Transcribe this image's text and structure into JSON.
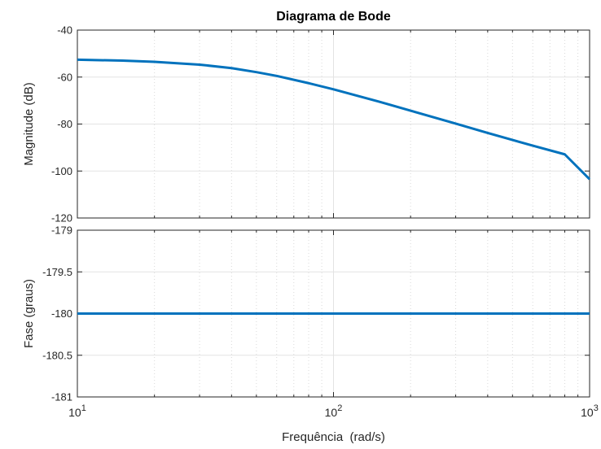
{
  "chart_data": [
    {
      "type": "line",
      "title": "Diagrama de Bode",
      "ylabel": "Magnitude (dB)",
      "xlabel": "",
      "xscale": "log",
      "xlim": [
        10,
        1000
      ],
      "ylim": [
        -120,
        -40
      ],
      "yticks": [
        -120,
        -100,
        -80,
        -60,
        -40
      ],
      "ytick_labels": [
        "-120",
        "-100",
        "-80",
        "-60",
        "-40"
      ],
      "grid": true,
      "series": [
        {
          "color": "#0072BD",
          "x": [
            10,
            15,
            20,
            30,
            40,
            50,
            60,
            80,
            100,
            150,
            200,
            300,
            400,
            600,
            800,
            1000
          ],
          "y": [
            -52.6,
            -53.0,
            -53.5,
            -54.7,
            -56.2,
            -57.9,
            -59.5,
            -62.6,
            -65.2,
            -70.4,
            -74.3,
            -79.8,
            -83.8,
            -89.2,
            -92.9,
            -103.5
          ]
        }
      ]
    },
    {
      "type": "line",
      "title": "",
      "ylabel": "Fase (graus)",
      "xlabel": "Frequência  (rad/s)",
      "xscale": "log",
      "xlim": [
        10,
        1000
      ],
      "ylim": [
        -181,
        -179
      ],
      "yticks": [
        -181,
        -180.5,
        -180,
        -179.5,
        -179
      ],
      "ytick_labels": [
        "-181",
        "-180.5",
        "-180",
        "-179.5",
        "-179"
      ],
      "xtick_labels": [
        {
          "base": "10",
          "exp": "1"
        },
        {
          "base": "10",
          "exp": "2"
        },
        {
          "base": "10",
          "exp": "3"
        }
      ],
      "grid": true,
      "series": [
        {
          "color": "#0072BD",
          "x": [
            10,
            1000
          ],
          "y": [
            -180,
            -180
          ]
        }
      ]
    }
  ]
}
